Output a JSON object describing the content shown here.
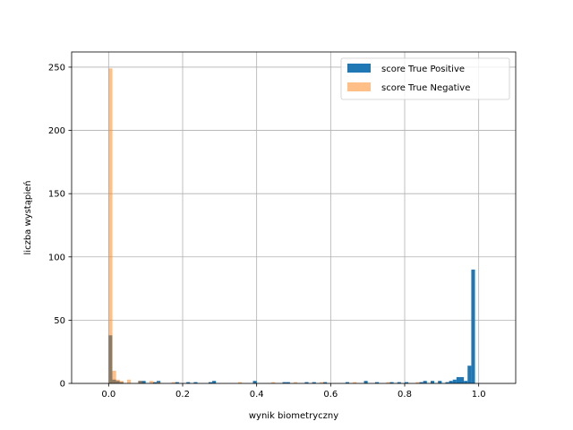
{
  "chart_data": {
    "type": "bar",
    "subtype": "histogram-overlay",
    "xlabel": "wynik biometryczny",
    "ylabel": "liczba wystąpień",
    "xlim": [
      -0.1,
      1.1
    ],
    "ylim": [
      0,
      262
    ],
    "xticks": [
      0.0,
      0.2,
      0.4,
      0.6,
      0.8,
      1.0
    ],
    "xtick_labels": [
      "0.0",
      "0.2",
      "0.4",
      "0.6",
      "0.8",
      "1.0"
    ],
    "yticks": [
      0,
      50,
      100,
      150,
      200,
      250
    ],
    "ytick_labels": [
      "0",
      "50",
      "100",
      "150",
      "200",
      "250"
    ],
    "grid": true,
    "legend_position": "top-right",
    "bin_width": 0.01,
    "series": [
      {
        "name": "score True Positive",
        "color": "#1f77b4",
        "opacity": 1.0,
        "bins": [
          [
            0.0,
            38
          ],
          [
            0.01,
            3
          ],
          [
            0.02,
            2
          ],
          [
            0.03,
            1
          ],
          [
            0.08,
            2
          ],
          [
            0.09,
            2
          ],
          [
            0.12,
            1
          ],
          [
            0.13,
            2
          ],
          [
            0.18,
            1
          ],
          [
            0.21,
            1
          ],
          [
            0.23,
            1
          ],
          [
            0.27,
            1
          ],
          [
            0.28,
            2
          ],
          [
            0.39,
            2
          ],
          [
            0.47,
            1
          ],
          [
            0.48,
            1
          ],
          [
            0.53,
            1
          ],
          [
            0.55,
            1
          ],
          [
            0.58,
            1
          ],
          [
            0.64,
            1
          ],
          [
            0.69,
            2
          ],
          [
            0.72,
            1
          ],
          [
            0.76,
            1
          ],
          [
            0.78,
            1
          ],
          [
            0.8,
            1
          ],
          [
            0.84,
            1
          ],
          [
            0.85,
            2
          ],
          [
            0.87,
            2
          ],
          [
            0.89,
            2
          ],
          [
            0.91,
            1
          ],
          [
            0.92,
            2
          ],
          [
            0.93,
            3
          ],
          [
            0.94,
            5
          ],
          [
            0.95,
            5
          ],
          [
            0.96,
            2
          ],
          [
            0.97,
            14
          ],
          [
            0.98,
            90
          ]
        ]
      },
      {
        "name": "score True Negative",
        "color": "#ff7f0e",
        "opacity": 0.5,
        "bins": [
          [
            0.0,
            249
          ],
          [
            0.01,
            10
          ],
          [
            0.02,
            3
          ],
          [
            0.03,
            2
          ],
          [
            0.05,
            3
          ],
          [
            0.08,
            2
          ],
          [
            0.11,
            2
          ],
          [
            0.13,
            1
          ],
          [
            0.17,
            1
          ],
          [
            0.35,
            1
          ],
          [
            0.44,
            1
          ],
          [
            0.5,
            1
          ],
          [
            0.57,
            1
          ],
          [
            0.66,
            1
          ],
          [
            0.75,
            1
          ],
          [
            0.83,
            1
          ]
        ]
      }
    ]
  }
}
